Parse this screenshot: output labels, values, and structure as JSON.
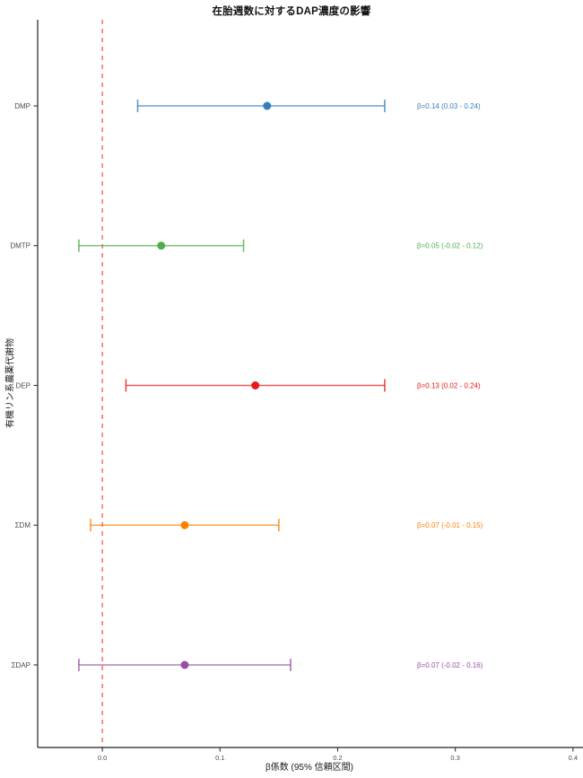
{
  "chart_data": {
    "type": "forest",
    "title": "在胎週数に対するDAP濃度の影響",
    "xlabel": "β係数 (95% 信頼区間)",
    "ylabel": "有機リン系農薬代謝物",
    "categories": [
      "DMP",
      "DMTP",
      "DEP",
      "ΣDM",
      "ΣDAP"
    ],
    "series": [
      {
        "name": "DMP",
        "beta": 0.14,
        "ci_low": 0.03,
        "ci_high": 0.24,
        "color": "#377EB8",
        "annotation": "β=0.14 (0.03 - 0.24)"
      },
      {
        "name": "DMTP",
        "beta": 0.05,
        "ci_low": -0.02,
        "ci_high": 0.12,
        "color": "#4DAF4A",
        "annotation": "β=0.05 (-0.02 - 0.12)"
      },
      {
        "name": "DEP",
        "beta": 0.13,
        "ci_low": 0.02,
        "ci_high": 0.24,
        "color": "#E41A1C",
        "annotation": "β=0.13 (0.02 - 0.24)"
      },
      {
        "name": "ΣDM",
        "beta": 0.07,
        "ci_low": -0.01,
        "ci_high": 0.15,
        "color": "#FF7F00",
        "annotation": "β=0.07 (-0.01 - 0.15)"
      },
      {
        "name": "ΣDAP",
        "beta": 0.07,
        "ci_low": -0.02,
        "ci_high": 0.16,
        "color": "#984EA3",
        "annotation": "β=0.07 (-0.02 - 0.16)"
      }
    ],
    "x_ticks": [
      {
        "value": 0.0,
        "label": "0.0"
      },
      {
        "value": 0.1,
        "label": "0.1"
      },
      {
        "value": 0.2,
        "label": "0.2"
      },
      {
        "value": 0.3,
        "label": "0.3"
      },
      {
        "value": 0.4,
        "label": "0.4"
      }
    ],
    "xlim": [
      -0.055,
      0.407
    ],
    "grid": "off",
    "legend": "none",
    "reference_line": {
      "value": 0.0,
      "color": "#FA8072",
      "style": "dashed"
    },
    "colors": {
      "axis": "#222222",
      "tick": "#333333",
      "tick_label": "#4d4d4d",
      "category_label": "#4d4d4d"
    }
  }
}
